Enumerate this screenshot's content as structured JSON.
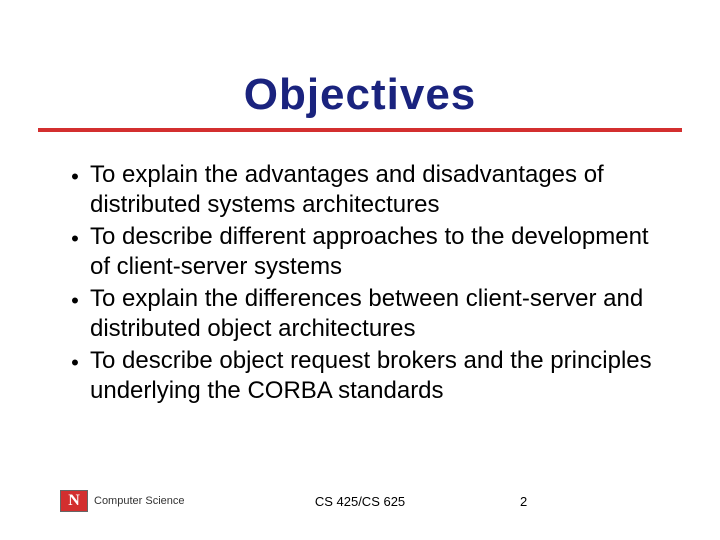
{
  "slide": {
    "title": "Objectives",
    "title_color": "#1a237e",
    "title_fontsize": 44,
    "underline_color": "#d32f2f",
    "underline_height": 4,
    "background_color": "#ffffff",
    "bullets": [
      "To explain the advantages and disadvantages of distributed systems architectures",
      "To describe different approaches to the development of client-server systems",
      "To explain the differences between client-server and distributed object architectures",
      "To describe object request brokers and the principles underlying the CORBA standards"
    ],
    "bullet_marker": "•",
    "bullet_fontsize": 24,
    "bullet_color": "#000000"
  },
  "footer": {
    "logo_letter": "N",
    "logo_bg": "#d32f2f",
    "logo_fg": "#ffffff",
    "department": "Computer Science",
    "course": "CS 425/CS 625",
    "page_number": "2",
    "fontsize": 13
  }
}
